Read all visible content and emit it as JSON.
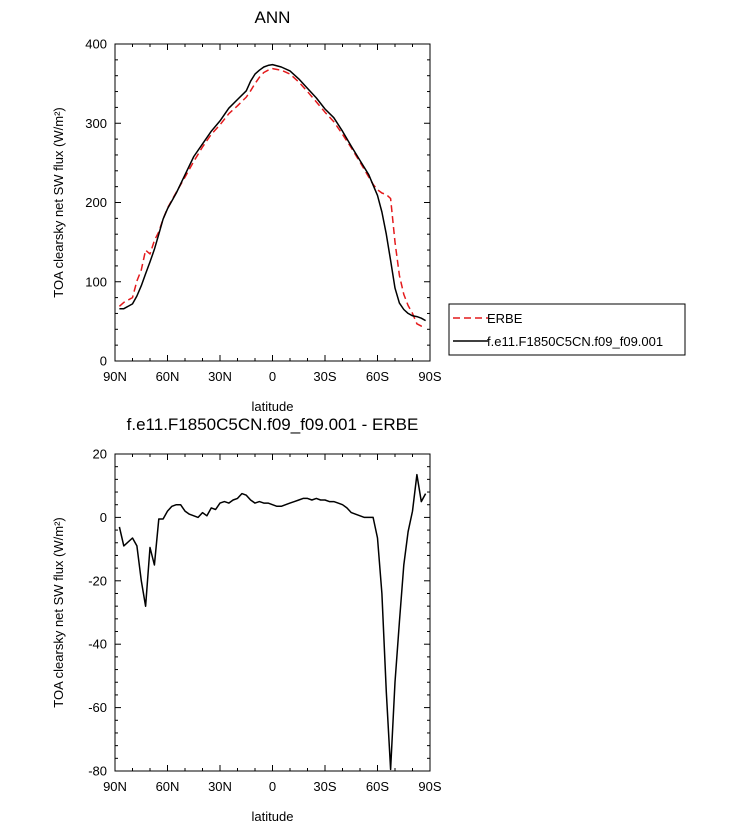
{
  "chart_data": [
    {
      "type": "line",
      "title": "ANN",
      "xlabel": "latitude",
      "ylabel": "TOA clearsky net SW flux (W/m²)",
      "xticks": [
        "90N",
        "60N",
        "30N",
        "0",
        "30S",
        "60S",
        "90S"
      ],
      "xlim": [
        90,
        -90
      ],
      "ylim": [
        0,
        400
      ],
      "yticks": [
        0,
        100,
        200,
        300,
        400
      ],
      "legend_position": "right",
      "series": [
        {
          "name": "ERBE",
          "color": "#e41a1c",
          "dash": "dashed",
          "x": [
            87.5,
            85,
            80,
            77.5,
            75,
            72.5,
            70,
            67.5,
            65,
            62.5,
            60,
            55,
            50,
            45,
            40,
            35,
            30,
            25,
            20,
            15,
            12.5,
            10,
            7.5,
            5,
            2.5,
            0,
            -5,
            -10,
            -15,
            -20,
            -25,
            -30,
            -35,
            -40,
            -45,
            -50,
            -55,
            -57.5,
            -60,
            -62.5,
            -65,
            -67.5,
            -70,
            -72.5,
            -75,
            -77.5,
            -80,
            -82.5,
            -85,
            -87.5
          ],
          "y": [
            69,
            74,
            80,
            101,
            115,
            140,
            135,
            152,
            163,
            179,
            193,
            213,
            232,
            252,
            270,
            286,
            298,
            312,
            322,
            333,
            341,
            350,
            358,
            364,
            367,
            369,
            367,
            362,
            352,
            340,
            327,
            314,
            302,
            286,
            269,
            251,
            232,
            223,
            216,
            212,
            210,
            205,
            150,
            108,
            84,
            70,
            60,
            47,
            44,
            43
          ]
        },
        {
          "name": "f.e11.F1850C5CN.f09_f09.001",
          "color": "#000000",
          "dash": "solid",
          "x": [
            87.5,
            85,
            80,
            77.5,
            75,
            72.5,
            70,
            67.5,
            65,
            62.5,
            60,
            55,
            50,
            45,
            40,
            35,
            30,
            25,
            20,
            15,
            12.5,
            10,
            7.5,
            5,
            2.5,
            0,
            -5,
            -10,
            -15,
            -20,
            -25,
            -30,
            -35,
            -40,
            -45,
            -50,
            -55,
            -57.5,
            -60,
            -62.5,
            -65,
            -67.5,
            -70,
            -72.5,
            -75,
            -77.5,
            -80,
            -82.5,
            -85,
            -87.5
          ],
          "y": [
            66,
            66,
            72,
            82,
            95,
            110,
            125,
            141,
            160,
            179,
            192,
            212,
            235,
            258,
            274,
            290,
            303,
            319,
            330,
            341,
            353,
            362,
            367,
            371,
            373,
            374,
            371,
            366,
            356,
            344,
            332,
            318,
            307,
            290,
            271,
            253,
            235,
            222,
            209,
            188,
            160,
            127,
            92,
            73,
            65,
            60,
            57,
            56,
            54,
            51
          ]
        }
      ]
    },
    {
      "type": "line",
      "title": "f.e11.F1850C5CN.f09_f09.001 - ERBE",
      "xlabel": "latitude",
      "ylabel": "TOA clearsky net SW flux (W/m²)",
      "xticks": [
        "90N",
        "60N",
        "30N",
        "0",
        "30S",
        "60S",
        "90S"
      ],
      "xlim": [
        90,
        -90
      ],
      "ylim": [
        -80,
        20
      ],
      "yticks": [
        -80,
        -60,
        -40,
        -20,
        0,
        20
      ],
      "series": [
        {
          "color": "#000000",
          "dash": "solid",
          "x": [
            87.5,
            85,
            80,
            77.5,
            75,
            72.5,
            70,
            67.5,
            65,
            62.5,
            60,
            57.5,
            55,
            52.5,
            50,
            47.5,
            45,
            42.5,
            40,
            37.5,
            35,
            32.5,
            30,
            27.5,
            25,
            22.5,
            20,
            17.5,
            15,
            12.5,
            10,
            7.5,
            5,
            2.5,
            0,
            -2.5,
            -5,
            -7.5,
            -10,
            -12.5,
            -15,
            -17.5,
            -20,
            -22.5,
            -25,
            -27.5,
            -30,
            -32.5,
            -35,
            -37.5,
            -40,
            -42.5,
            -45,
            -47.5,
            -50,
            -52.5,
            -55,
            -57.5,
            -60,
            -62.5,
            -65,
            -67.5,
            -70,
            -72.5,
            -75,
            -77.5,
            -80,
            -82.5,
            -85,
            -87.5
          ],
          "y": [
            -3,
            -9,
            -6.5,
            -9,
            -20,
            -28,
            -9.5,
            -15,
            -0.5,
            -0.5,
            2,
            3.5,
            4,
            4,
            2,
            1,
            0.5,
            0,
            1.5,
            0.5,
            3,
            2.5,
            4.5,
            5,
            4.5,
            5.5,
            6,
            7.5,
            7,
            5.5,
            4.5,
            5,
            4.5,
            4.5,
            4,
            3.5,
            3.5,
            4,
            4.5,
            5,
            5.5,
            6,
            6,
            5.5,
            6,
            5.5,
            5.5,
            5,
            5,
            4.5,
            4,
            3,
            1.5,
            1,
            0.5,
            0,
            0,
            0,
            -6.5,
            -24,
            -55,
            -79.5,
            -52,
            -33,
            -15,
            -4.5,
            2,
            13.5,
            5,
            7.5
          ]
        }
      ]
    }
  ]
}
